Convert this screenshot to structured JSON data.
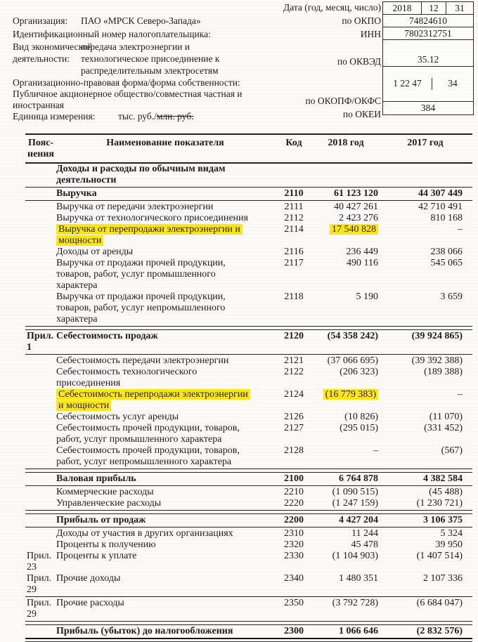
{
  "page": {
    "paper_color": "#fbfaf7",
    "ink_color": "#1d1d1d",
    "highlight_color": "#ffe70f"
  },
  "form_header": {
    "date_label": "Дата (год, месяц, число)",
    "date_cells": {
      "year": "2018",
      "month": "12",
      "day": "31"
    },
    "org_label": "Организация:",
    "org_value": "ПАО «МРСК Северо-Запада»",
    "okpo_label": "по ОКПО",
    "okpo_value": "74824610",
    "inn_caption": "Идентификационный номер налогоплательщика:",
    "inn_label": "ИНН",
    "inn_value": "7802312751",
    "activity_label_line1": "Вид экономической",
    "activity_label_line2": "деятельности:",
    "activity_value_line1": "передача электроэнергии и",
    "activity_value_line2": "технологическое присоединение к",
    "activity_value_line3": "распределительным электросетям",
    "okved_label": "по ОКВЭД",
    "okved_value": "35.12",
    "opf_caption_line1": "Организационно-правовая форма/форма собственности:",
    "opf_caption_line2": "Публичное акционерное общество/совместная частная и",
    "opf_caption_line3": "иностранная",
    "okopf_label": "по ОКОПФ/ОКФС",
    "okopf_value": "1 22 47",
    "okfs_value": "34",
    "unit_label": "Единица измерения:",
    "unit_value_main": "тыс. руб./",
    "unit_value_struck": "млн. руб.",
    "okei_label": "по ОКЕИ",
    "okei_value": "384"
  },
  "table": {
    "headers": {
      "notes": "Пояс-\nнения",
      "name": "Наименование показателя",
      "code": "Код",
      "y2018": "2018 год",
      "y2017": "2017 год"
    },
    "rows": [
      {
        "type": "section",
        "name": "Доходы и расходы по обычным видам\nдеятельности"
      },
      {
        "type": "rule"
      },
      {
        "type": "row",
        "bold": true,
        "name": "Выручка",
        "code": "2110",
        "y2018": "61 123 120",
        "y2017": "44 307 449"
      },
      {
        "type": "rule"
      },
      {
        "type": "row",
        "name": "Выручка от передачи электроэнергии",
        "code": "2111",
        "y2018": "40 427 261",
        "y2017": "42 710 491"
      },
      {
        "type": "row",
        "name": "Выручка от технологического присоединения",
        "code": "2112",
        "y2018": "2 423 276",
        "y2017": "810 168"
      },
      {
        "type": "row",
        "highlight": true,
        "name": "Выручка от перепродажи электроэнергии и\nмощности",
        "code": "2114",
        "y2018": "17 540 828",
        "y2017": "–"
      },
      {
        "type": "row",
        "name": "Доходы от аренды",
        "code": "2116",
        "y2018": "236 449",
        "y2017": "238 066"
      },
      {
        "type": "row",
        "name": "Выручка от продажи прочей продукции,\nтоваров, работ, услуг промышленного\nхарактера",
        "code": "2117",
        "y2018": "490 116",
        "y2017": "545 065"
      },
      {
        "type": "row",
        "name": "Выручка от продажи прочей продукции,\nтоваров, работ, услуг непромышленного\nхарактера",
        "code": "2118",
        "y2018": "5 190",
        "y2017": "3 659"
      },
      {
        "type": "rule2"
      },
      {
        "type": "row",
        "bold": true,
        "expl": "Прил. 1",
        "name": "Себестоимость продаж",
        "code": "2120",
        "y2018": "(54 358 242)",
        "y2017": "(39 924 865)"
      },
      {
        "type": "rule"
      },
      {
        "type": "row",
        "name": "Себестоимость передачи электроэнергии",
        "code": "2121",
        "y2018": "(37 066 695)",
        "y2017": "(39 392 388)"
      },
      {
        "type": "row",
        "name": "Себестоимость технологического\nприсоединения",
        "code": "2122",
        "y2018": "(206 323)",
        "y2017": "(189 388)"
      },
      {
        "type": "row",
        "highlight": true,
        "name": "Себестоимость перепродажи электроэнергии\nи мощности",
        "code": "2124",
        "y2018": "(16 779 383)",
        "y2017": "–"
      },
      {
        "type": "row",
        "name": "Себестоимость услуг аренды",
        "code": "2126",
        "y2018": "(10 826)",
        "y2017": "(11 070)"
      },
      {
        "type": "row",
        "name": "Себестоимость прочей продукции, товаров,\nработ, услуг промышленного характера",
        "code": "2127",
        "y2018": "(295 015)",
        "y2017": "(331 452)"
      },
      {
        "type": "row",
        "name": "Себестоимость прочей продукции, товаров,\nработ, услуг непромышленного характера",
        "code": "2128",
        "y2018": "–",
        "y2017": "(567)"
      },
      {
        "type": "rule2"
      },
      {
        "type": "row",
        "bold": true,
        "name": "Валовая прибыль",
        "code": "2100",
        "y2018": "6 764 878",
        "y2017": "4 382 584"
      },
      {
        "type": "rule"
      },
      {
        "type": "row",
        "name": "Коммерческие расходы",
        "code": "2210",
        "y2018": "(1 090 515)",
        "y2017": "(45 488)"
      },
      {
        "type": "row",
        "name": "Управленческие расходы",
        "code": "2220",
        "y2018": "(1 247 159)",
        "y2017": "(1 230 721)"
      },
      {
        "type": "rule2"
      },
      {
        "type": "row",
        "bold": true,
        "name": "Прибыль от продаж",
        "code": "2200",
        "y2018": "4 427 204",
        "y2017": "3 106 375"
      },
      {
        "type": "rule"
      },
      {
        "type": "row",
        "name": "Доходы от участия в других организациях",
        "code": "2310",
        "y2018": "11 244",
        "y2017": "5 324"
      },
      {
        "type": "row",
        "name": "Проценты к получению",
        "code": "2320",
        "y2018": "45 478",
        "y2017": "39 950"
      },
      {
        "type": "row",
        "expl": "Прил. 23",
        "name": "Проценты к уплате",
        "code": "2330",
        "y2018": "(1 104 903)",
        "y2017": "(1 407 514)"
      },
      {
        "type": "row",
        "expl": "Прил. 29",
        "name": "Прочие доходы",
        "code": "2340",
        "y2018": "1 480 351",
        "y2017": "2 107 336"
      },
      {
        "type": "rule"
      },
      {
        "type": "row",
        "expl": "Прил. 29",
        "name": "Прочие расходы",
        "code": "2350",
        "y2018": "(3 792 728)",
        "y2017": "(6 684 047)"
      },
      {
        "type": "rule2"
      },
      {
        "type": "row",
        "bold": true,
        "name": "Прибыль (убыток) до налогообложения",
        "code": "2300",
        "y2018": "1 066 646",
        "y2017": "(2 832 576)"
      },
      {
        "type": "rule-thick"
      }
    ]
  }
}
